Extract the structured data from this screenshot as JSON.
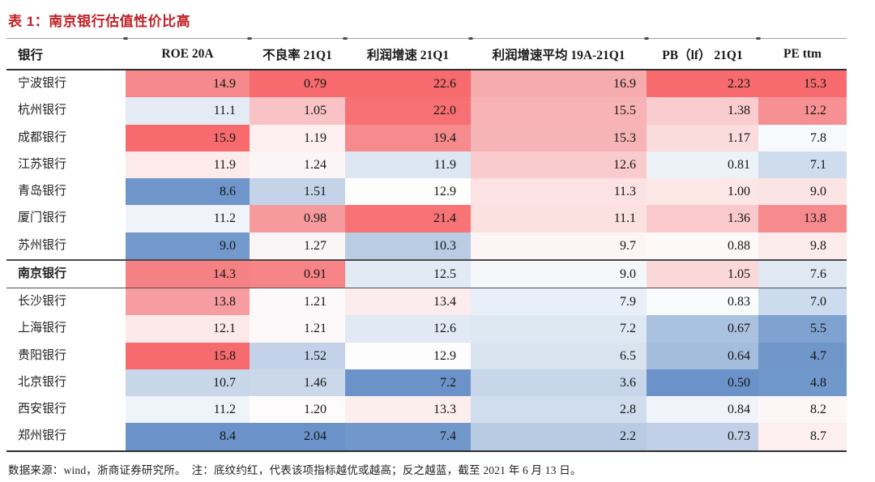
{
  "title": "表 1：南京银行估值性价比高",
  "table": {
    "columns": [
      "银行",
      "ROE 20A",
      "不良率 21Q1",
      "利润增速 21Q1",
      "利润增速平均 19A-21Q1",
      "PB（lf） 21Q1",
      "PE ttm"
    ],
    "rows": [
      {
        "bank": "宁波银行",
        "bold": false,
        "values": [
          "14.9",
          "0.79",
          "22.6",
          "16.9",
          "2.23",
          "15.3"
        ],
        "colors": [
          "#f6898c",
          "#f76b6e",
          "#f76b6e",
          "#f6abad",
          "#f76b6e",
          "#f76b6e"
        ]
      },
      {
        "bank": "杭州银行",
        "bold": false,
        "values": [
          "11.1",
          "1.05",
          "22.0",
          "15.5",
          "1.38",
          "12.2"
        ],
        "colors": [
          "#e4ebf5",
          "#f9c3c5",
          "#f77174",
          "#f7b3b5",
          "#f9cdcf",
          "#f69093"
        ]
      },
      {
        "bank": "成都银行",
        "bold": false,
        "values": [
          "15.9",
          "1.19",
          "19.4",
          "15.3",
          "1.17",
          "7.8"
        ],
        "colors": [
          "#f76b6e",
          "#fdeff0",
          "#f68b8e",
          "#f7b4b6",
          "#fbdcdd",
          "#f7f9fc"
        ]
      },
      {
        "bank": "江苏银行",
        "bold": false,
        "values": [
          "11.9",
          "1.24",
          "11.9",
          "12.6",
          "0.81",
          "7.1"
        ],
        "colors": [
          "#fdebeb",
          "#fbf5f7",
          "#dde7f3",
          "#f9cbcc",
          "#edf2f9",
          "#cedcee"
        ]
      },
      {
        "bank": "青岛银行",
        "bold": false,
        "values": [
          "8.6",
          "1.51",
          "12.9",
          "11.3",
          "1.00",
          "9.0"
        ],
        "colors": [
          "#6f95ca",
          "#c4d3e8",
          "#fdfdfe",
          "#fce2e2",
          "#fce6e6",
          "#fce4e4"
        ]
      },
      {
        "bank": "厦门银行",
        "bold": false,
        "values": [
          "11.2",
          "0.98",
          "21.4",
          "11.1",
          "1.36",
          "13.8"
        ],
        "colors": [
          "#f0f4fa",
          "#f79a9d",
          "#f77376",
          "#fce1e1",
          "#f9c9cb",
          "#f68a8d"
        ]
      },
      {
        "bank": "苏州银行",
        "bold": false,
        "values": [
          "9.0",
          "1.27",
          "10.3",
          "9.7",
          "0.88",
          "9.8"
        ],
        "colors": [
          "#7398cb",
          "#faf6f8",
          "#b9cce4",
          "#fdf5f5",
          "#fdf9f9",
          "#fcebeb"
        ]
      },
      {
        "bank": "南京银行",
        "bold": true,
        "values": [
          "14.3",
          "0.91",
          "12.5",
          "9.0",
          "1.05",
          "7.6"
        ],
        "colors": [
          "#f68184",
          "#f78487",
          "#e2eaf4",
          "#f4f6fa",
          "#fad8d9",
          "#dfe8f3"
        ]
      },
      {
        "bank": "长沙银行",
        "bold": false,
        "values": [
          "13.8",
          "1.21",
          "13.4",
          "7.9",
          "0.83",
          "7.0"
        ],
        "colors": [
          "#f79ca0",
          "#fdf9fa",
          "#fdeced",
          "#e9eff8",
          "#fafbfd",
          "#ccdbed"
        ]
      },
      {
        "bank": "上海银行",
        "bold": false,
        "values": [
          "12.1",
          "1.21",
          "12.6",
          "7.2",
          "0.67",
          "5.5"
        ],
        "colors": [
          "#fde9e9",
          "#fdf9fa",
          "#e1e9f4",
          "#dee8f3",
          "#aac1df",
          "#7fa2d1"
        ]
      },
      {
        "bank": "贵阳银行",
        "bold": false,
        "values": [
          "15.8",
          "1.52",
          "12.9",
          "6.5",
          "0.64",
          "4.7"
        ],
        "colors": [
          "#f76b6e",
          "#c3d2e8",
          "#fdfdfe",
          "#d9e4f0",
          "#a4bddc",
          "#7096ca"
        ]
      },
      {
        "bank": "北京银行",
        "bold": false,
        "values": [
          "10.7",
          "1.46",
          "7.2",
          "3.6",
          "0.50",
          "4.8"
        ],
        "colors": [
          "#c7d6e9",
          "#cad8ea",
          "#6b93c9",
          "#c8d6ea",
          "#6b93c9",
          "#7198cb"
        ]
      },
      {
        "bank": "西安银行",
        "bold": false,
        "values": [
          "11.2",
          "1.20",
          "13.3",
          "2.8",
          "0.84",
          "8.2"
        ],
        "colors": [
          "#eff3fa",
          "#fdfbfc",
          "#fdeeee",
          "#cfddee",
          "#f0f4fa",
          "#fdf6f7"
        ]
      },
      {
        "bank": "郑州银行",
        "bold": false,
        "values": [
          "8.4",
          "2.04",
          "7.4",
          "2.2",
          "0.73",
          "8.7"
        ],
        "colors": [
          "#6b93c9",
          "#6b93c9",
          "#7197cb",
          "#b7cbe3",
          "#c1d0e6",
          "#fdeff0"
        ]
      }
    ]
  },
  "footer": "数据来源：wind，浙商证券研究所。　注：底纹约红，代表该项指标越优或越高；反之越蓝，截至 2021 年 6 月 13 日。",
  "colors": {
    "title_red": "#c32026",
    "heat_red_max": "#f76b6e",
    "heat_blue_max": "#6b93c9",
    "rule_dark": "#2f2f2f",
    "rule_light": "#9e9e9e"
  }
}
